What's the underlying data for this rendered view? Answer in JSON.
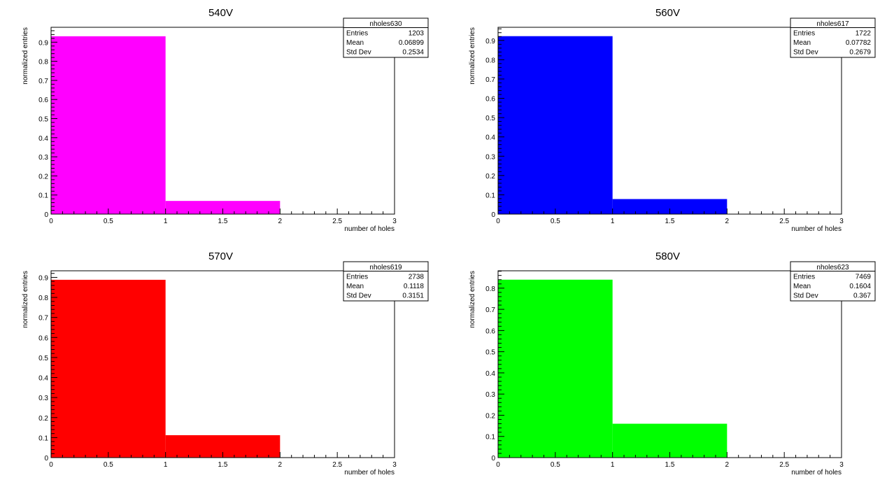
{
  "chart_data": [
    {
      "type": "bar",
      "title": "540V",
      "xlabel": "number of holes",
      "ylabel": "normalized entries",
      "bins": [
        [
          0,
          1
        ],
        [
          1,
          2
        ],
        [
          2,
          3
        ]
      ],
      "values": [
        0.931,
        0.069,
        0
      ],
      "color": "#ff00ff",
      "xlim": [
        0,
        3
      ],
      "ylim": [
        0,
        0.978
      ],
      "xticks": [
        "0",
        "0.5",
        "1",
        "1.5",
        "2",
        "2.5",
        "3"
      ],
      "yticks": [
        "0",
        "0.1",
        "0.2",
        "0.3",
        "0.4",
        "0.5",
        "0.6",
        "0.7",
        "0.8",
        "0.9"
      ],
      "stats": {
        "name": "nholes630",
        "rows": [
          {
            "label": "Entries",
            "value": "1203"
          },
          {
            "label": "Mean",
            "value": "0.06899"
          },
          {
            "label": "Std Dev",
            "value": "0.2534"
          }
        ]
      },
      "legend": "top-right"
    },
    {
      "type": "bar",
      "title": "560V",
      "xlabel": "number of holes",
      "ylabel": "normalized entries",
      "bins": [
        [
          0,
          1
        ],
        [
          1,
          2
        ],
        [
          2,
          3
        ]
      ],
      "values": [
        0.922,
        0.078,
        0
      ],
      "color": "#0000ff",
      "xlim": [
        0,
        3
      ],
      "ylim": [
        0,
        0.968
      ],
      "xticks": [
        "0",
        "0.5",
        "1",
        "1.5",
        "2",
        "2.5",
        "3"
      ],
      "yticks": [
        "0",
        "0.1",
        "0.2",
        "0.3",
        "0.4",
        "0.5",
        "0.6",
        "0.7",
        "0.8",
        "0.9"
      ],
      "stats": {
        "name": "nholes617",
        "rows": [
          {
            "label": "Entries",
            "value": "1722"
          },
          {
            "label": "Mean",
            "value": "0.07782"
          },
          {
            "label": "Std Dev",
            "value": "0.2679"
          }
        ]
      },
      "legend": "top-right"
    },
    {
      "type": "bar",
      "title": "570V",
      "xlabel": "number of holes",
      "ylabel": "normalized entries",
      "bins": [
        [
          0,
          1
        ],
        [
          1,
          2
        ],
        [
          2,
          3
        ]
      ],
      "values": [
        0.888,
        0.112,
        0
      ],
      "color": "#ff0000",
      "xlim": [
        0,
        3
      ],
      "ylim": [
        0,
        0.933
      ],
      "xticks": [
        "0",
        "0.5",
        "1",
        "1.5",
        "2",
        "2.5",
        "3"
      ],
      "yticks": [
        "0",
        "0.1",
        "0.2",
        "0.3",
        "0.4",
        "0.5",
        "0.6",
        "0.7",
        "0.8",
        "0.9"
      ],
      "stats": {
        "name": "nholes619",
        "rows": [
          {
            "label": "Entries",
            "value": "2738"
          },
          {
            "label": "Mean",
            "value": "0.1118"
          },
          {
            "label": "Std Dev",
            "value": "0.3151"
          }
        ]
      },
      "legend": "top-right"
    },
    {
      "type": "bar",
      "title": "580V",
      "xlabel": "number of holes",
      "ylabel": "normalized entries",
      "bins": [
        [
          0,
          1
        ],
        [
          1,
          2
        ],
        [
          2,
          3
        ]
      ],
      "values": [
        0.84,
        0.16,
        0
      ],
      "color": "#00ff00",
      "xlim": [
        0,
        3
      ],
      "ylim": [
        0,
        0.882
      ],
      "xticks": [
        "0",
        "0.5",
        "1",
        "1.5",
        "2",
        "2.5",
        "3"
      ],
      "yticks": [
        "0",
        "0.1",
        "0.2",
        "0.3",
        "0.4",
        "0.5",
        "0.6",
        "0.7",
        "0.8"
      ],
      "stats": {
        "name": "nholes623",
        "rows": [
          {
            "label": "Entries",
            "value": "7469"
          },
          {
            "label": "Mean",
            "value": "0.1604"
          },
          {
            "label": "Std Dev",
            "value": "0.367"
          }
        ]
      },
      "legend": "top-right"
    }
  ]
}
